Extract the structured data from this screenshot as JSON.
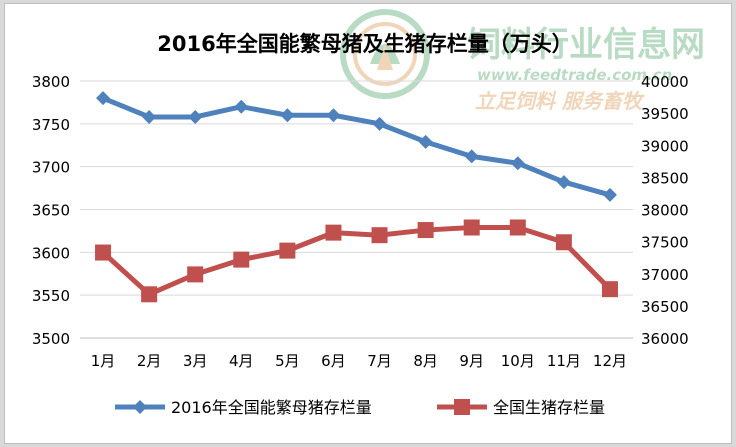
{
  "chart_data": {
    "type": "line",
    "title": "2016年全国能繁母猪及生猪存栏量（万头）",
    "categories": [
      "1月",
      "2月",
      "3月",
      "4月",
      "5月",
      "6月",
      "7月",
      "8月",
      "9月",
      "10月",
      "11月",
      "12月"
    ],
    "series": [
      {
        "name": "2016年全国能繁母猪存栏量",
        "axis": "left",
        "color": "#4F81BD",
        "marker": "diamond",
        "values": [
          3780,
          3758,
          3758,
          3770,
          3760,
          3760,
          3750,
          3729,
          3712,
          3704,
          3682,
          3667
        ]
      },
      {
        "name": "全国生猪存栏量",
        "axis": "right",
        "color": "#C0504D",
        "marker": "square",
        "values": [
          37330,
          36680,
          36990,
          37220,
          37360,
          37640,
          37600,
          37680,
          37720,
          37720,
          37490,
          36760
        ]
      }
    ],
    "y_left": {
      "min": 3500,
      "max": 3800,
      "step": 50,
      "ticks": [
        "3500",
        "3550",
        "3600",
        "3650",
        "3700",
        "3750",
        "3800"
      ]
    },
    "y_right": {
      "min": 36000,
      "max": 40000,
      "step": 500,
      "ticks": [
        "36000",
        "36500",
        "37000",
        "37500",
        "38000",
        "38500",
        "39000",
        "39500",
        "40000"
      ]
    },
    "grid": "horizontal",
    "legend": "bottom",
    "watermark": {
      "logo": "feedtrade-logo-icon",
      "title": "饲料行业信息网",
      "url": "www.feedtrade.com.cn",
      "slogan": "立足饲料   服务畜牧"
    }
  }
}
